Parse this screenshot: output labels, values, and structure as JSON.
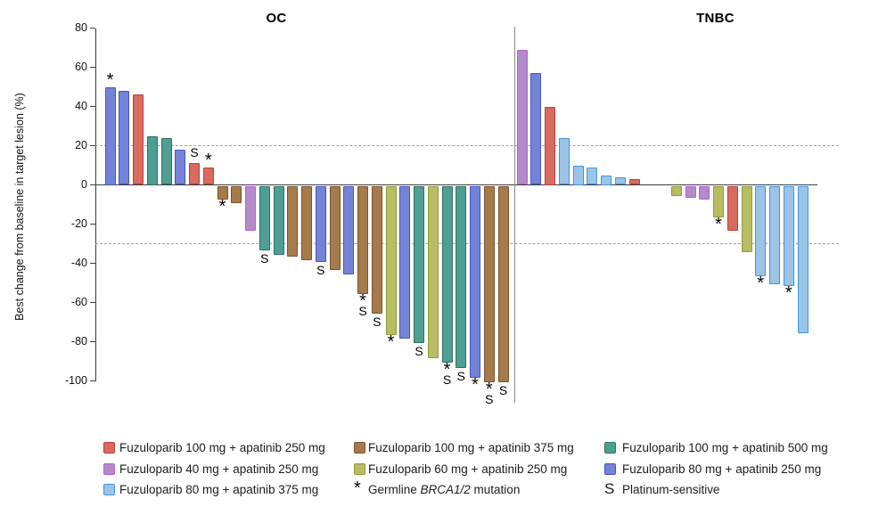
{
  "colors": {
    "red": {
      "fill": "#D96A5F",
      "border": "#BE4138"
    },
    "purple": {
      "fill": "#B48BC9",
      "border": "#B55FD9"
    },
    "skyblue": {
      "fill": "#9CC4E6",
      "border": "#3E96E0"
    },
    "brown": {
      "fill": "#A67B4C",
      "border": "#7A5230"
    },
    "olive": {
      "fill": "#B8BC62",
      "border": "#8E9C37"
    },
    "teal": {
      "fill": "#4E9E93",
      "border": "#2F7061"
    },
    "slate": {
      "fill": "#7583D6",
      "border": "#4753C4"
    }
  },
  "chart_data": {
    "type": "bar",
    "subtype": "waterfall",
    "ylabel": "Best change from baseline in target lesion (%)",
    "ylim": [
      -100,
      80
    ],
    "yticks": [
      80,
      60,
      40,
      20,
      0,
      -20,
      -40,
      -60,
      -80,
      -100
    ],
    "reference_lines": [
      20,
      -30
    ],
    "grid": false,
    "marks_meaning": {
      "*": "Germline BRCA1/2 mutation",
      "S": "Platinum-sensitive"
    },
    "panels": [
      {
        "title": "OC",
        "bars": [
          {
            "v": 50,
            "c": "slate",
            "marks": [
              "*"
            ]
          },
          {
            "v": 48,
            "c": "slate"
          },
          {
            "v": 46,
            "c": "red"
          },
          {
            "v": 25,
            "c": "teal"
          },
          {
            "v": 24,
            "c": "teal"
          },
          {
            "v": 18,
            "c": "slate"
          },
          {
            "v": 11,
            "c": "red",
            "marks": [
              "S"
            ]
          },
          {
            "v": 9,
            "c": "red",
            "marks": [
              "*"
            ]
          },
          {
            "v": -7,
            "c": "brown",
            "marks": [
              "*"
            ]
          },
          {
            "v": -9,
            "c": "brown"
          },
          {
            "v": -23,
            "c": "purple"
          },
          {
            "v": -33,
            "c": "teal",
            "marks": [
              "S"
            ]
          },
          {
            "v": -35,
            "c": "teal"
          },
          {
            "v": -36,
            "c": "brown"
          },
          {
            "v": -38,
            "c": "brown"
          },
          {
            "v": -39,
            "c": "slate",
            "marks": [
              "S"
            ]
          },
          {
            "v": -43,
            "c": "brown"
          },
          {
            "v": -45,
            "c": "slate"
          },
          {
            "v": -55,
            "c": "brown",
            "marks": [
              "*",
              "S"
            ]
          },
          {
            "v": -65,
            "c": "brown",
            "marks": [
              "S"
            ]
          },
          {
            "v": -76,
            "c": "olive",
            "marks": [
              "*"
            ]
          },
          {
            "v": -78,
            "c": "slate"
          },
          {
            "v": -80,
            "c": "teal",
            "marks": [
              "S"
            ]
          },
          {
            "v": -88,
            "c": "olive"
          },
          {
            "v": -90,
            "c": "teal",
            "marks": [
              "*",
              "S"
            ]
          },
          {
            "v": -93,
            "c": "teal",
            "marks": [
              "S"
            ]
          },
          {
            "v": -98,
            "c": "slate",
            "marks": [
              "*"
            ]
          },
          {
            "v": -100,
            "c": "brown",
            "marks": [
              "*",
              "S"
            ]
          },
          {
            "v": -100,
            "c": "brown",
            "marks": [
              "S"
            ]
          }
        ]
      },
      {
        "title": "TNBC",
        "bars": [
          {
            "v": 69,
            "c": "purple"
          },
          {
            "v": 57,
            "c": "slate"
          },
          {
            "v": 40,
            "c": "red"
          },
          {
            "v": 24,
            "c": "skyblue"
          },
          {
            "v": 10,
            "c": "skyblue"
          },
          {
            "v": 9,
            "c": "skyblue"
          },
          {
            "v": 5,
            "c": "skyblue"
          },
          {
            "v": 4,
            "c": "skyblue"
          },
          {
            "v": 3,
            "c": "red"
          },
          {
            "v": 0,
            "c": null
          },
          {
            "v": 0,
            "c": null
          },
          {
            "v": -5,
            "c": "olive"
          },
          {
            "v": -6,
            "c": "purple"
          },
          {
            "v": -7,
            "c": "purple"
          },
          {
            "v": -16,
            "c": "olive",
            "marks": [
              "*"
            ]
          },
          {
            "v": -23,
            "c": "red"
          },
          {
            "v": -34,
            "c": "olive"
          },
          {
            "v": -46,
            "c": "skyblue",
            "marks": [
              "*"
            ]
          },
          {
            "v": -50,
            "c": "skyblue"
          },
          {
            "v": -51,
            "c": "skyblue",
            "marks": [
              "*"
            ]
          },
          {
            "v": -75,
            "c": "skyblue"
          }
        ]
      }
    ]
  },
  "legend": {
    "columns": [
      [
        {
          "type": "swatch",
          "color": "red",
          "label": "Fuzuloparib 100 mg + apatinib 250 mg"
        },
        {
          "type": "swatch",
          "color": "purple",
          "label": "Fuzuloparib 40 mg + apatinib 250 mg"
        },
        {
          "type": "swatch",
          "color": "skyblue",
          "label": "Fuzuloparib 80 mg + apatinib 375 mg"
        }
      ],
      [
        {
          "type": "swatch",
          "color": "brown",
          "label": "Fuzuloparib 100 mg + apatinib 375 mg"
        },
        {
          "type": "swatch",
          "color": "olive",
          "label": "Fuzuloparib 60 mg + apatinib 250 mg"
        },
        {
          "type": "star",
          "symbol": "*",
          "label_parts": [
            "Germline ",
            "BRCA1/2",
            " mutation"
          ]
        }
      ],
      [
        {
          "type": "swatch",
          "color": "teal",
          "label": "Fuzuloparib 100 mg + apatinib 500 mg"
        },
        {
          "type": "swatch",
          "color": "slate",
          "label": "Fuzuloparib 80 mg + apatinib 250 mg"
        },
        {
          "type": "symbol",
          "symbol": "S",
          "label": "Platinum-sensitive"
        }
      ]
    ]
  }
}
